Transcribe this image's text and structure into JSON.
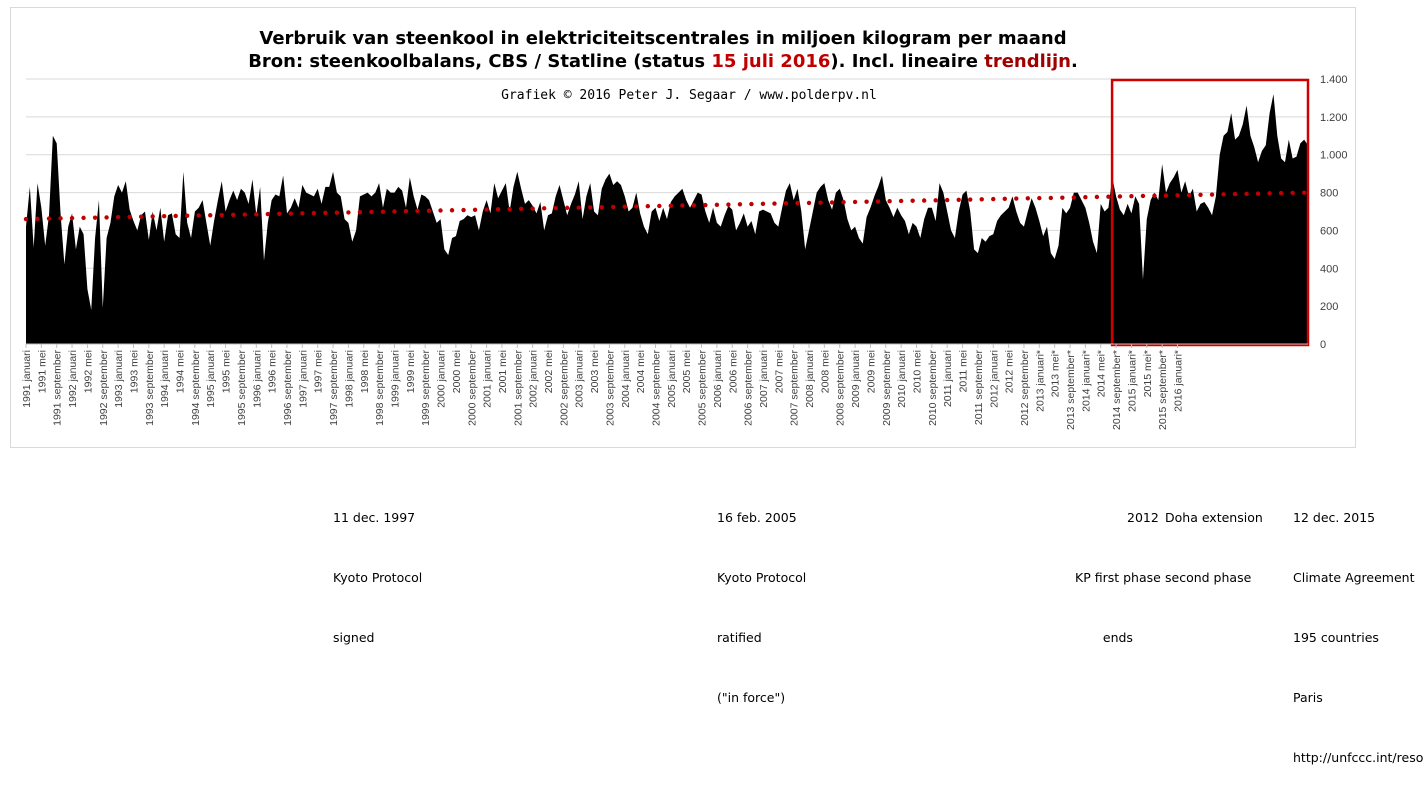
{
  "chart_data": {
    "type": "area",
    "title_line1": "Verbruik van steenkool in elektriciteitscentrales in miljoen kilogram per maand",
    "title_line2_parts": [
      "Bron: steenkoolbalans, CBS / Statline (status ",
      "15 juli 2016",
      "). Incl. lineaire ",
      "trendlijn",
      "."
    ],
    "credit": "Grafiek © 2016 Peter J. Segaar / www.polderpv.nl",
    "ylim": [
      0,
      1400
    ],
    "ytick_labels": [
      "0",
      "200",
      "400",
      "600",
      "800",
      "1.000",
      "1.200",
      "1.400"
    ],
    "yticks": [
      0,
      200,
      400,
      600,
      800,
      1000,
      1200,
      1400
    ],
    "x_start": "1991 januari",
    "x_tick_every_months": 4,
    "x_labels": [
      "1991 januari",
      "1991 mei",
      "1991 september",
      "1992 januari",
      "1992 mei",
      "1992 september",
      "1993 januari",
      "1993 mei",
      "1993 september",
      "1994 januari",
      "1994 mei",
      "1994 september",
      "1995 januari",
      "1995 mei",
      "1995 september",
      "1996 januari",
      "1996 mei",
      "1996 september",
      "1997 januari",
      "1997 mei",
      "1997 september",
      "1998 januari",
      "1998 mei",
      "1998 september",
      "1999 januari",
      "1999 mei",
      "1999 september",
      "2000 januari",
      "2000 mei",
      "2000 september",
      "2001 januari",
      "2001 mei",
      "2001 september",
      "2002 januari",
      "2002 mei",
      "2002 september",
      "2003 januari",
      "2003 mei",
      "2003 september",
      "2004 januari",
      "2004 mei",
      "2004 september",
      "2005 januari",
      "2005 mei",
      "2005 september",
      "2006 januari",
      "2006 mei",
      "2006 september",
      "2007 januari",
      "2007 mei",
      "2007 september",
      "2008 januari",
      "2008 mei",
      "2008 september",
      "2009 januari",
      "2009 mei",
      "2009 september",
      "2010 januari",
      "2010 mei",
      "2010 september",
      "2011 januari",
      "2011 mei",
      "2011 september",
      "2012 januari",
      "2012 mei",
      "2012 september",
      "2013 januari*",
      "2013 mei*",
      "2013 september*",
      "2014 januari*",
      "2014 mei*",
      "2014 september*",
      "2015 januari*",
      "2015 mei*",
      "2015 september*",
      "2016 januari*"
    ],
    "series": [
      {
        "values": [
          620,
          830,
          510,
          850,
          720,
          520,
          680,
          1100,
          1060,
          690,
          420,
          620,
          690,
          500,
          620,
          580,
          290,
          180,
          560,
          760,
          190,
          560,
          640,
          780,
          840,
          800,
          860,
          710,
          650,
          600,
          680,
          700,
          550,
          700,
          600,
          720,
          540,
          680,
          690,
          580,
          560,
          910,
          640,
          560,
          700,
          720,
          760,
          640,
          520,
          650,
          760,
          860,
          700,
          760,
          810,
          760,
          820,
          800,
          740,
          870,
          680,
          830,
          440,
          640,
          760,
          790,
          780,
          890,
          690,
          720,
          770,
          720,
          840,
          800,
          790,
          780,
          820,
          740,
          830,
          830,
          910,
          800,
          780,
          660,
          640,
          540,
          600,
          780,
          790,
          800,
          780,
          800,
          850,
          720,
          820,
          800,
          800,
          830,
          810,
          720,
          880,
          780,
          710,
          790,
          780,
          760,
          700,
          640,
          660,
          500,
          470,
          560,
          570,
          650,
          660,
          680,
          670,
          680,
          600,
          700,
          760,
          690,
          850,
          770,
          810,
          850,
          700,
          830,
          910,
          820,
          740,
          760,
          730,
          690,
          750,
          600,
          680,
          690,
          780,
          840,
          760,
          680,
          740,
          790,
          860,
          660,
          780,
          850,
          700,
          680,
          820,
          870,
          900,
          840,
          860,
          840,
          780,
          700,
          720,
          800,
          690,
          620,
          580,
          700,
          720,
          650,
          720,
          660,
          750,
          780,
          800,
          820,
          760,
          720,
          760,
          800,
          790,
          700,
          640,
          720,
          640,
          620,
          680,
          730,
          710,
          600,
          640,
          690,
          620,
          650,
          580,
          700,
          710,
          700,
          690,
          640,
          620,
          720,
          810,
          850,
          760,
          820,
          700,
          500,
          600,
          700,
          800,
          830,
          850,
          760,
          710,
          800,
          820,
          760,
          660,
          600,
          620,
          560,
          530,
          670,
          720,
          780,
          830,
          890,
          760,
          720,
          670,
          720,
          680,
          650,
          580,
          640,
          620,
          560,
          660,
          720,
          720,
          650,
          850,
          800,
          700,
          600,
          560,
          700,
          790,
          810,
          700,
          500,
          480,
          560,
          540,
          570,
          580,
          650,
          680,
          700,
          720,
          780,
          700,
          640,
          620,
          700,
          770,
          720,
          650,
          570,
          620,
          480,
          450,
          520,
          720,
          690,
          720,
          800,
          800,
          760,
          720,
          640,
          540,
          480,
          740,
          700,
          720,
          880,
          780,
          710,
          680,
          740,
          690,
          780,
          740,
          340,
          660,
          760,
          800,
          760,
          950,
          800,
          850,
          880,
          920,
          800,
          860,
          780,
          820,
          700,
          740,
          750,
          720,
          680,
          780,
          1000,
          1100,
          1120,
          1220,
          1080,
          1100,
          1160,
          1260,
          1100,
          1040,
          960,
          1020,
          1050,
          1220,
          1320,
          1100,
          980,
          960,
          1080,
          980,
          990,
          1060,
          1080,
          1050
        ]
      },
      {
        "name": "trendlijn",
        "trend_start": 660,
        "trend_end": 800
      }
    ],
    "highlight_range": [
      "2014 september*",
      "2016 mei*"
    ]
  },
  "annotations": [
    {
      "lines": [
        "11 dec. 1997",
        "Kyoto Protocol",
        "signed"
      ]
    },
    {
      "lines": [
        "16 feb. 2005",
        "Kyoto Protocol",
        "ratified",
        "(\"in force\")"
      ]
    },
    {
      "lines": [
        "KP first phase",
        "ends"
      ],
      "header": "2012"
    },
    {
      "lines": [
        "Doha extension",
        "second phase"
      ]
    },
    {
      "lines": [
        "12 dec. 2015",
        "Climate Agreement",
        "195 countries",
        "Paris",
        "http://unfccc.int/reso"
      ]
    }
  ],
  "colors": {
    "area": "#000000",
    "trend": "#c00000",
    "highlight": "#d00000",
    "title_red": "#c00000",
    "title_dark_red": "#a00000"
  }
}
